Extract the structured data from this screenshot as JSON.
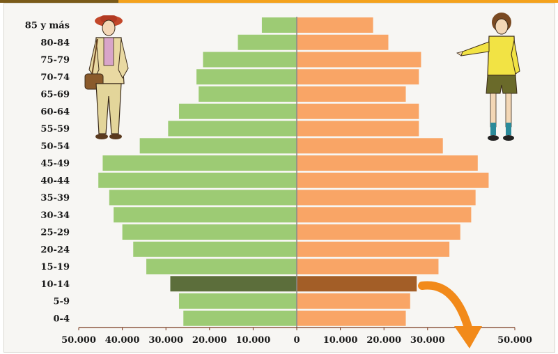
{
  "chart_data": {
    "type": "bar",
    "orientation": "horizontal-population-pyramid",
    "categories": [
      "85 y más",
      "80-84",
      "75-79",
      "70-74",
      "65-69",
      "60-64",
      "55-59",
      "50-54",
      "45-49",
      "40-44",
      "35-39",
      "30-34",
      "25-29",
      "20-24",
      "15-19",
      "10-14",
      "5-9",
      "0-4"
    ],
    "series": [
      {
        "values": [
          8000,
          13500,
          21500,
          23000,
          22500,
          27000,
          29500,
          36000,
          44500,
          45500,
          43000,
          42000,
          40000,
          37500,
          34500,
          29000,
          27000,
          26000
        ],
        "color": "#9dcb74",
        "highlight_color": "#5c6e3b"
      },
      {
        "values": [
          17500,
          21000,
          28500,
          28000,
          25000,
          28000,
          28000,
          33500,
          41500,
          44000,
          41000,
          40000,
          37500,
          35000,
          32500,
          27500,
          26000,
          25000
        ],
        "color": "#f9a566",
        "highlight_color": "#a35e27"
      }
    ],
    "highlight_category": "10-14",
    "x_tick_labels": [
      "50.000",
      "40.000",
      "30.000",
      "20.000",
      "10.000",
      "0",
      "10.000",
      "20.000",
      "30.000",
      "",
      "50.000"
    ],
    "xlim": [
      -50000,
      50000
    ],
    "xlabel": "",
    "ylabel": "",
    "title": "",
    "grid": false,
    "legend": "none",
    "annotations": {
      "arrow_icon": "orange-curved-arrow-icon",
      "left_figure_icon": "man-with-bag-illustration-icon",
      "right_figure_icon": "woman-pointing-illustration-icon"
    }
  }
}
